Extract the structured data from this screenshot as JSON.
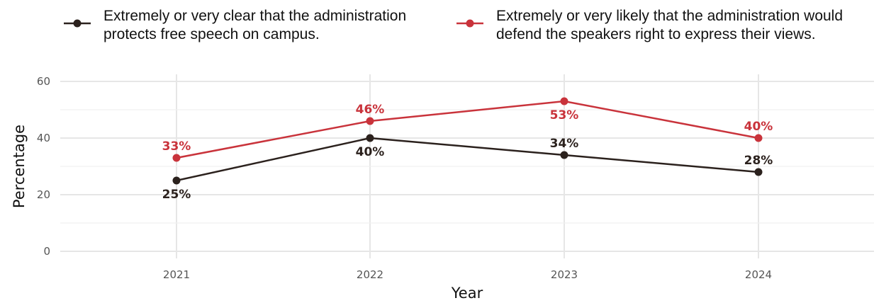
{
  "chart_data": {
    "type": "line",
    "title": "",
    "xlabel": "Year",
    "ylabel": "Percentage",
    "x": [
      "2021",
      "2022",
      "2023",
      "2024"
    ],
    "ylim": [
      0,
      60
    ],
    "yticks": [
      0,
      20,
      40,
      60
    ],
    "grid": true,
    "legend_position": "top",
    "series": [
      {
        "name": "Extremely or very clear that the administration\nprotects free speech on campus.",
        "color": "#2b211d",
        "values": [
          25,
          40,
          34,
          28
        ],
        "labels": [
          "25%",
          "40%",
          "34%",
          "28%"
        ],
        "label_side": [
          "below",
          "below",
          "above",
          "above"
        ]
      },
      {
        "name": "Extremely or very likely that the administration would\ndefend the speakers right to express their views.",
        "color": "#c9333b",
        "values": [
          33,
          46,
          53,
          40
        ],
        "labels": [
          "33%",
          "46%",
          "53%",
          "40%"
        ],
        "label_side": [
          "above",
          "above",
          "below",
          "above"
        ]
      }
    ]
  }
}
